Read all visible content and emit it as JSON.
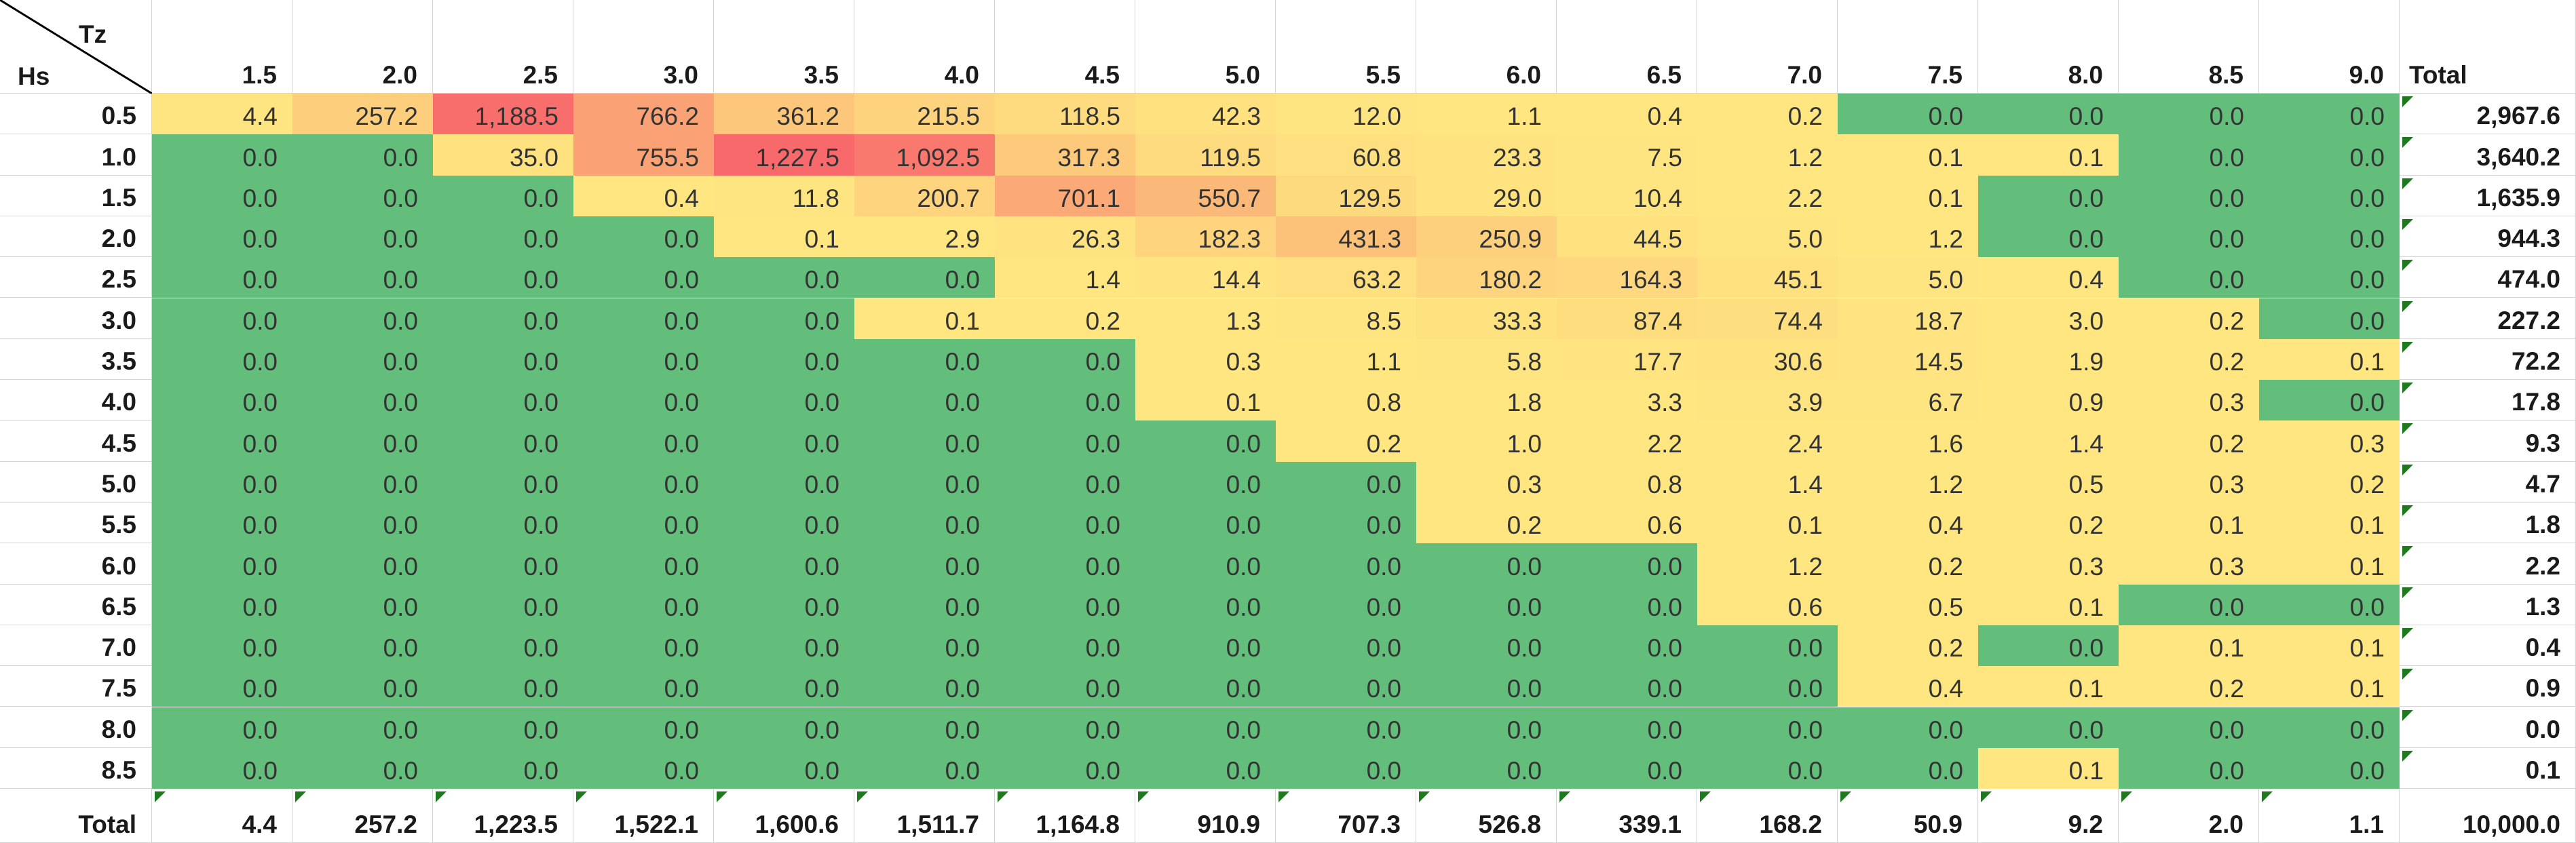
{
  "table": {
    "corner_col_label": "Tz",
    "corner_row_label": "Hs",
    "columns": [
      "1.5",
      "2.0",
      "2.5",
      "3.0",
      "3.5",
      "4.0",
      "4.5",
      "5.0",
      "5.5",
      "6.0",
      "6.5",
      "7.0",
      "7.5",
      "8.0",
      "8.5",
      "9.0"
    ],
    "total_label": "Total",
    "rows": [
      {
        "hs": "0.5",
        "values": [
          "4.4",
          "257.2",
          "1,188.5",
          "766.2",
          "361.2",
          "215.5",
          "118.5",
          "42.3",
          "12.0",
          "1.1",
          "0.4",
          "0.2",
          "0.0",
          "0.0",
          "0.0",
          "0.0"
        ],
        "total": "2,967.6"
      },
      {
        "hs": "1.0",
        "values": [
          "0.0",
          "0.0",
          "35.0",
          "755.5",
          "1,227.5",
          "1,092.5",
          "317.3",
          "119.5",
          "60.8",
          "23.3",
          "7.5",
          "1.2",
          "0.1",
          "0.1",
          "0.0",
          "0.0"
        ],
        "total": "3,640.2"
      },
      {
        "hs": "1.5",
        "values": [
          "0.0",
          "0.0",
          "0.0",
          "0.4",
          "11.8",
          "200.7",
          "701.1",
          "550.7",
          "129.5",
          "29.0",
          "10.4",
          "2.2",
          "0.1",
          "0.0",
          "0.0",
          "0.0"
        ],
        "total": "1,635.9"
      },
      {
        "hs": "2.0",
        "values": [
          "0.0",
          "0.0",
          "0.0",
          "0.0",
          "0.1",
          "2.9",
          "26.3",
          "182.3",
          "431.3",
          "250.9",
          "44.5",
          "5.0",
          "1.2",
          "0.0",
          "0.0",
          "0.0"
        ],
        "total": "944.3"
      },
      {
        "hs": "2.5",
        "values": [
          "0.0",
          "0.0",
          "0.0",
          "0.0",
          "0.0",
          "0.0",
          "1.4",
          "14.4",
          "63.2",
          "180.2",
          "164.3",
          "45.1",
          "5.0",
          "0.4",
          "0.0",
          "0.0"
        ],
        "total": "474.0"
      },
      {
        "hs": "3.0",
        "values": [
          "0.0",
          "0.0",
          "0.0",
          "0.0",
          "0.0",
          "0.1",
          "0.2",
          "1.3",
          "8.5",
          "33.3",
          "87.4",
          "74.4",
          "18.7",
          "3.0",
          "0.2",
          "0.0"
        ],
        "total": "227.2"
      },
      {
        "hs": "3.5",
        "values": [
          "0.0",
          "0.0",
          "0.0",
          "0.0",
          "0.0",
          "0.0",
          "0.0",
          "0.3",
          "1.1",
          "5.8",
          "17.7",
          "30.6",
          "14.5",
          "1.9",
          "0.2",
          "0.1"
        ],
        "total": "72.2"
      },
      {
        "hs": "4.0",
        "values": [
          "0.0",
          "0.0",
          "0.0",
          "0.0",
          "0.0",
          "0.0",
          "0.0",
          "0.1",
          "0.8",
          "1.8",
          "3.3",
          "3.9",
          "6.7",
          "0.9",
          "0.3",
          "0.0"
        ],
        "total": "17.8"
      },
      {
        "hs": "4.5",
        "values": [
          "0.0",
          "0.0",
          "0.0",
          "0.0",
          "0.0",
          "0.0",
          "0.0",
          "0.0",
          "0.2",
          "1.0",
          "2.2",
          "2.4",
          "1.6",
          "1.4",
          "0.2",
          "0.3"
        ],
        "total": "9.3"
      },
      {
        "hs": "5.0",
        "values": [
          "0.0",
          "0.0",
          "0.0",
          "0.0",
          "0.0",
          "0.0",
          "0.0",
          "0.0",
          "0.0",
          "0.3",
          "0.8",
          "1.4",
          "1.2",
          "0.5",
          "0.3",
          "0.2"
        ],
        "total": "4.7"
      },
      {
        "hs": "5.5",
        "values": [
          "0.0",
          "0.0",
          "0.0",
          "0.0",
          "0.0",
          "0.0",
          "0.0",
          "0.0",
          "0.0",
          "0.2",
          "0.6",
          "0.1",
          "0.4",
          "0.2",
          "0.1",
          "0.1"
        ],
        "total": "1.8"
      },
      {
        "hs": "6.0",
        "values": [
          "0.0",
          "0.0",
          "0.0",
          "0.0",
          "0.0",
          "0.0",
          "0.0",
          "0.0",
          "0.0",
          "0.0",
          "0.0",
          "1.2",
          "0.2",
          "0.3",
          "0.3",
          "0.1"
        ],
        "total": "2.2"
      },
      {
        "hs": "6.5",
        "values": [
          "0.0",
          "0.0",
          "0.0",
          "0.0",
          "0.0",
          "0.0",
          "0.0",
          "0.0",
          "0.0",
          "0.0",
          "0.0",
          "0.6",
          "0.5",
          "0.1",
          "0.0",
          "0.0"
        ],
        "total": "1.3"
      },
      {
        "hs": "7.0",
        "values": [
          "0.0",
          "0.0",
          "0.0",
          "0.0",
          "0.0",
          "0.0",
          "0.0",
          "0.0",
          "0.0",
          "0.0",
          "0.0",
          "0.0",
          "0.2",
          "0.0",
          "0.1",
          "0.1"
        ],
        "total": "0.4"
      },
      {
        "hs": "7.5",
        "values": [
          "0.0",
          "0.0",
          "0.0",
          "0.0",
          "0.0",
          "0.0",
          "0.0",
          "0.0",
          "0.0",
          "0.0",
          "0.0",
          "0.0",
          "0.4",
          "0.1",
          "0.2",
          "0.1"
        ],
        "total": "0.9"
      },
      {
        "hs": "8.0",
        "values": [
          "0.0",
          "0.0",
          "0.0",
          "0.0",
          "0.0",
          "0.0",
          "0.0",
          "0.0",
          "0.0",
          "0.0",
          "0.0",
          "0.0",
          "0.0",
          "0.0",
          "0.0",
          "0.0"
        ],
        "total": "0.0"
      },
      {
        "hs": "8.5",
        "values": [
          "0.0",
          "0.0",
          "0.0",
          "0.0",
          "0.0",
          "0.0",
          "0.0",
          "0.0",
          "0.0",
          "0.0",
          "0.0",
          "0.0",
          "0.0",
          "0.1",
          "0.0",
          "0.0"
        ],
        "total": "0.1"
      }
    ],
    "column_totals": [
      "4.4",
      "257.2",
      "1,223.5",
      "1,522.1",
      "1,600.6",
      "1,511.7",
      "1,164.8",
      "910.9",
      "707.3",
      "526.8",
      "339.1",
      "168.2",
      "50.9",
      "9.2",
      "2.0",
      "1.1"
    ],
    "grand_total": "10,000.0",
    "colors": {
      "zero": "#63be7b",
      "low": "#ffe681",
      "mid": "#fbb578",
      "high": "#f8696b",
      "grid_line": "#d4d4d4",
      "indicator": "#1d7a1d"
    }
  }
}
